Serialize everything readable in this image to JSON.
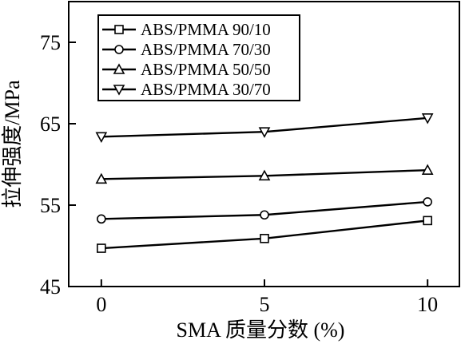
{
  "chart_data": {
    "type": "line",
    "title": "",
    "xlabel": "SMA 质量分数 (%)",
    "ylabel": "拉伸强度/MPa",
    "x": [
      0,
      5,
      10
    ],
    "xticks": [
      "0",
      "5",
      "10"
    ],
    "yticks": [
      "45",
      "55",
      "65",
      "75"
    ],
    "xlim": [
      -1,
      11
    ],
    "ylim": [
      45,
      80
    ],
    "grid": false,
    "legend_position": "top-left",
    "series": [
      {
        "name": "ABS/PMMA 90/10",
        "marker": "square",
        "values": [
          49.7,
          50.9,
          53.1
        ]
      },
      {
        "name": "ABS/PMMA 70/30",
        "marker": "circle",
        "values": [
          53.3,
          53.8,
          55.4
        ]
      },
      {
        "name": "ABS/PMMA 50/50",
        "marker": "triangle-up",
        "values": [
          58.2,
          58.6,
          59.3
        ]
      },
      {
        "name": "ABS/PMMA 30/70",
        "marker": "triangle-down",
        "values": [
          63.4,
          64.0,
          65.7
        ]
      }
    ]
  }
}
